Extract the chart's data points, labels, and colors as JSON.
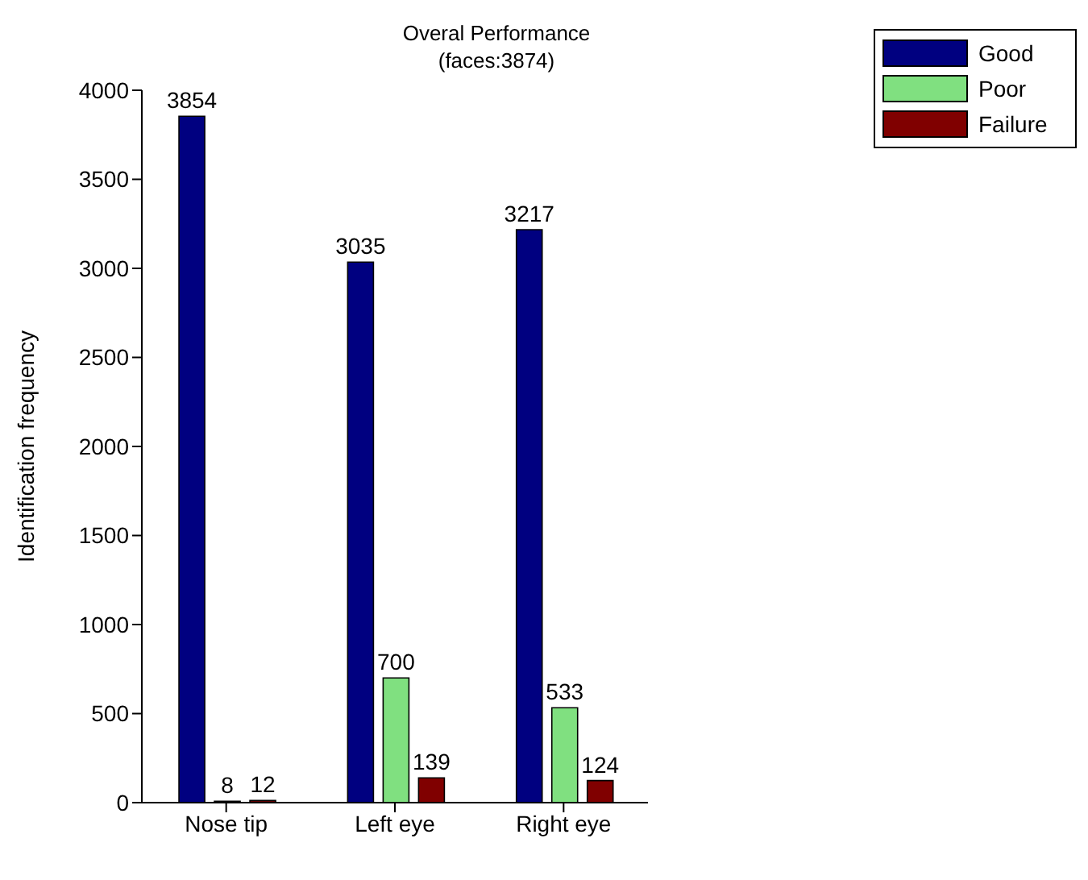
{
  "chart_data": {
    "type": "bar",
    "title": "Overal Performance",
    "subtitle": "(faces:3874)",
    "ylabel": "Identification frequency",
    "categories": [
      "Nose tip",
      "Left eye",
      "Right eye"
    ],
    "series": [
      {
        "name": "Good",
        "color": "#000080",
        "values": [
          3854,
          3035,
          3217
        ]
      },
      {
        "name": "Poor",
        "color": "#80e080",
        "values": [
          8,
          700,
          533
        ]
      },
      {
        "name": "Failure",
        "color": "#800000",
        "values": [
          12,
          139,
          124
        ]
      }
    ],
    "ylim": [
      0,
      4000
    ],
    "yticks": [
      0,
      500,
      1000,
      1500,
      2000,
      2500,
      3000,
      3500,
      4000
    ],
    "data_labels": true,
    "legend": "top right",
    "grid": false
  }
}
